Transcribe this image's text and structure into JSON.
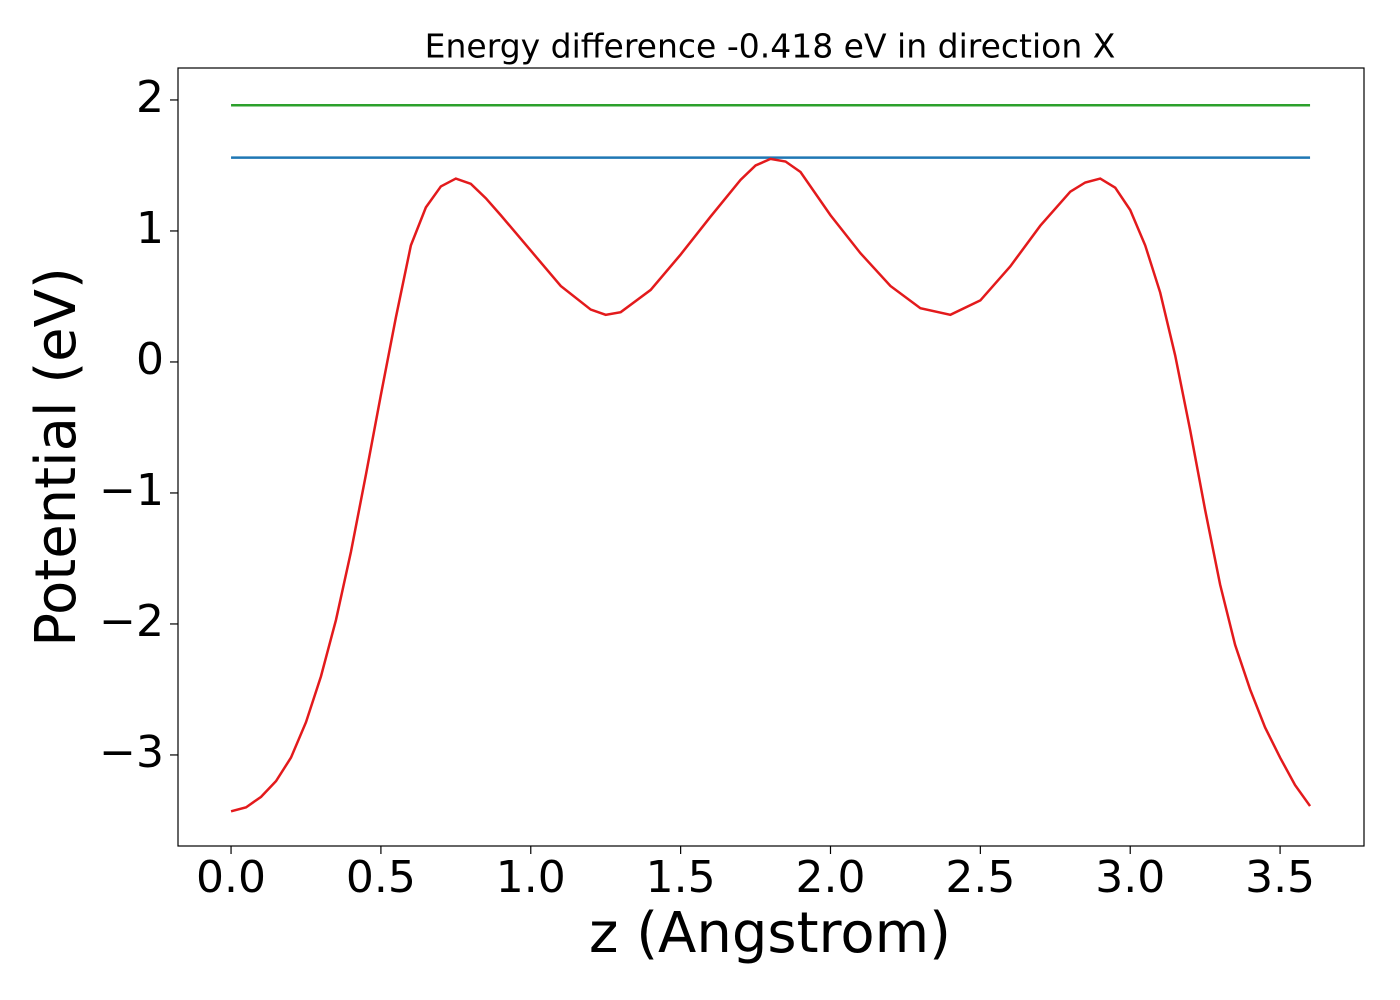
{
  "chart_data": {
    "type": "line",
    "title": "Energy difference -0.418 eV in direction X",
    "x_label": "z (Angstrom)",
    "y_label": "Potential (eV)",
    "series": [
      {
        "color": "#2ca02c",
        "x": [
          0,
          3.6
        ],
        "values": [
          1.96,
          1.96
        ]
      },
      {
        "color": "#1f77b4",
        "x": [
          0,
          3.6
        ],
        "values": [
          1.56,
          1.56
        ]
      },
      {
        "color": "#e31a1c",
        "x": [
          0,
          0.05,
          0.1,
          0.15,
          0.2,
          0.25,
          0.3,
          0.35,
          0.4,
          0.45,
          0.5,
          0.55,
          0.6,
          0.65,
          0.7,
          0.75,
          0.8,
          0.85,
          0.9,
          1.0,
          1.1,
          1.2,
          1.25,
          1.3,
          1.4,
          1.5,
          1.6,
          1.7,
          1.75,
          1.8,
          1.85,
          1.9,
          2.0,
          2.1,
          2.2,
          2.3,
          2.4,
          2.5,
          2.6,
          2.7,
          2.8,
          2.85,
          2.9,
          2.95,
          3.0,
          3.05,
          3.1,
          3.15,
          3.2,
          3.25,
          3.3,
          3.35,
          3.4,
          3.45,
          3.5,
          3.55,
          3.6
        ],
        "values": [
          -3.43,
          -3.4,
          -3.32,
          -3.2,
          -3.02,
          -2.75,
          -2.4,
          -1.97,
          -1.45,
          -0.86,
          -0.25,
          0.34,
          0.89,
          1.18,
          1.34,
          1.4,
          1.36,
          1.25,
          1.12,
          0.85,
          0.58,
          0.4,
          0.36,
          0.38,
          0.55,
          0.82,
          1.11,
          1.39,
          1.5,
          1.55,
          1.53,
          1.45,
          1.12,
          0.83,
          0.58,
          0.41,
          0.36,
          0.47,
          0.73,
          1.04,
          1.3,
          1.37,
          1.4,
          1.33,
          1.16,
          0.89,
          0.53,
          0.05,
          -0.52,
          -1.13,
          -1.7,
          -2.16,
          -2.5,
          -2.79,
          -3.02,
          -3.23,
          -3.39
        ]
      }
    ],
    "xlim": [
      -0.177,
      3.78
    ],
    "ylim": [
      -3.695,
      2.244
    ],
    "xticks": [
      {
        "value": 0,
        "label": "0.0"
      },
      0.5,
      {
        "value": 1,
        "label": "1.0"
      },
      1.5,
      {
        "value": 2,
        "label": "2.0"
      },
      2.5,
      {
        "value": 3,
        "label": "3.0"
      },
      3.5
    ],
    "yticks": [
      {
        "value": -3,
        "label": "−3"
      },
      {
        "value": -2,
        "label": "−2"
      },
      {
        "value": -1,
        "label": "−1"
      },
      0,
      1,
      2
    ]
  }
}
